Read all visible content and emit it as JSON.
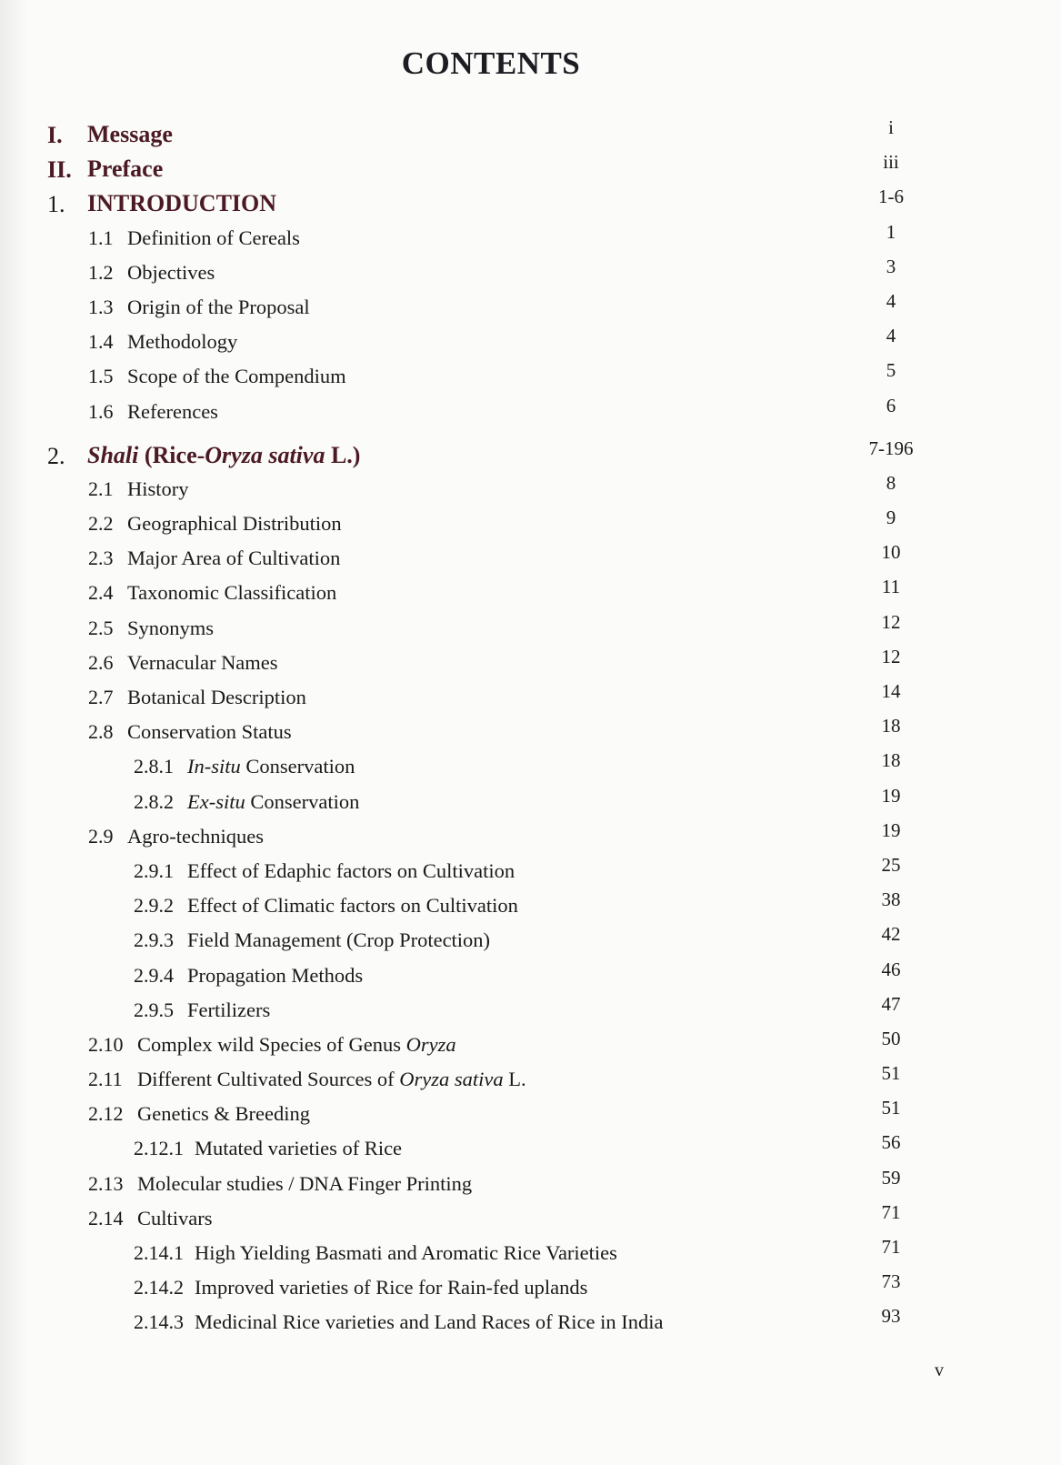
{
  "title": "CONTENTS",
  "entries": [
    {
      "level": 0,
      "bold_num": true,
      "num": "I.",
      "parts": [
        {
          "t": "Message"
        }
      ],
      "page": "i"
    },
    {
      "level": 0,
      "bold_num": true,
      "num": "II.",
      "parts": [
        {
          "t": "Preface"
        }
      ],
      "page": "iii"
    },
    {
      "level": 0,
      "num": "1.",
      "parts": [
        {
          "t": "INTRODUCTION"
        }
      ],
      "page": "1-6"
    },
    {
      "level": 1,
      "num": "1.1",
      "parts": [
        {
          "t": "Definition of Cereals"
        }
      ],
      "page": "1"
    },
    {
      "level": 1,
      "num": "1.2",
      "parts": [
        {
          "t": "Objectives"
        }
      ],
      "page": "3"
    },
    {
      "level": 1,
      "num": "1.3",
      "parts": [
        {
          "t": "Origin of the Proposal"
        }
      ],
      "page": "4"
    },
    {
      "level": 1,
      "num": "1.4",
      "parts": [
        {
          "t": "Methodology"
        }
      ],
      "page": "4"
    },
    {
      "level": 1,
      "num": "1.5",
      "parts": [
        {
          "t": "Scope of the Compendium"
        }
      ],
      "page": "5"
    },
    {
      "level": 1,
      "num": "1.6",
      "parts": [
        {
          "t": "References"
        }
      ],
      "page": "6"
    },
    {
      "level": 0,
      "num": "2.",
      "parts": [
        {
          "t": "Shali",
          "i": true
        },
        {
          "t": " (Rice-"
        },
        {
          "t": "Oryza sativa",
          "i": true
        },
        {
          "t": " L.)"
        }
      ],
      "page": "7-196"
    },
    {
      "level": 1,
      "num": "2.1",
      "parts": [
        {
          "t": "History"
        }
      ],
      "page": "8"
    },
    {
      "level": 1,
      "num": "2.2",
      "parts": [
        {
          "t": "Geographical Distribution"
        }
      ],
      "page": "9"
    },
    {
      "level": 1,
      "num": "2.3",
      "parts": [
        {
          "t": "Major Area of Cultivation"
        }
      ],
      "page": "10"
    },
    {
      "level": 1,
      "num": "2.4",
      "parts": [
        {
          "t": "Taxonomic Classification"
        }
      ],
      "page": "11"
    },
    {
      "level": 1,
      "num": "2.5",
      "parts": [
        {
          "t": "Synonyms"
        }
      ],
      "page": "12"
    },
    {
      "level": 1,
      "num": "2.6",
      "parts": [
        {
          "t": "Vernacular Names"
        }
      ],
      "page": "12"
    },
    {
      "level": 1,
      "num": "2.7",
      "parts": [
        {
          "t": "Botanical Description"
        }
      ],
      "page": "14"
    },
    {
      "level": 1,
      "num": "2.8",
      "parts": [
        {
          "t": "Conservation Status"
        }
      ],
      "page": "18"
    },
    {
      "level": 2,
      "num": "2.8.1",
      "parts": [
        {
          "t": "In-situ",
          "i": true
        },
        {
          "t": " Conservation"
        }
      ],
      "page": "18"
    },
    {
      "level": 2,
      "num": "2.8.2",
      "parts": [
        {
          "t": "Ex-situ",
          "i": true
        },
        {
          "t": " Conservation"
        }
      ],
      "page": "19"
    },
    {
      "level": 1,
      "num": "2.9",
      "parts": [
        {
          "t": "Agro-techniques"
        }
      ],
      "page": "19"
    },
    {
      "level": 2,
      "num": "2.9.1",
      "parts": [
        {
          "t": "Effect of Edaphic factors on Cultivation"
        }
      ],
      "page": "25"
    },
    {
      "level": 2,
      "num": "2.9.2",
      "parts": [
        {
          "t": "Effect of Climatic factors on Cultivation"
        }
      ],
      "page": "38"
    },
    {
      "level": 2,
      "num": "2.9.3",
      "parts": [
        {
          "t": "Field Management (Crop Protection)"
        }
      ],
      "page": "42"
    },
    {
      "level": 2,
      "num": "2.9.4",
      "parts": [
        {
          "t": "Propagation Methods"
        }
      ],
      "page": "46"
    },
    {
      "level": 2,
      "num": "2.9.5",
      "parts": [
        {
          "t": "Fertilizers"
        }
      ],
      "page": "47"
    },
    {
      "level": 1,
      "wide": true,
      "num": "2.10",
      "parts": [
        {
          "t": "Complex wild Species of Genus "
        },
        {
          "t": "Oryza",
          "i": true
        }
      ],
      "page": "50"
    },
    {
      "level": 1,
      "wide": true,
      "num": "2.11",
      "parts": [
        {
          "t": "Different Cultivated Sources of "
        },
        {
          "t": "Oryza sativa",
          "i": true
        },
        {
          "t": " L."
        }
      ],
      "page": "51"
    },
    {
      "level": 1,
      "wide": true,
      "num": "2.12",
      "parts": [
        {
          "t": "Genetics & Breeding"
        }
      ],
      "page": "51"
    },
    {
      "level": 2,
      "wide": true,
      "num": "2.12.1",
      "parts": [
        {
          "t": "Mutated varieties of Rice"
        }
      ],
      "page": "56"
    },
    {
      "level": 1,
      "wide": true,
      "num": "2.13",
      "parts": [
        {
          "t": "Molecular studies / DNA Finger Printing"
        }
      ],
      "page": "59"
    },
    {
      "level": 1,
      "wide": true,
      "num": "2.14",
      "parts": [
        {
          "t": "Cultivars"
        }
      ],
      "page": "71"
    },
    {
      "level": 2,
      "wide": true,
      "num": "2.14.1",
      "parts": [
        {
          "t": "High Yielding Basmati and Aromatic Rice Varieties"
        }
      ],
      "page": "71"
    },
    {
      "level": 2,
      "wide": true,
      "num": "2.14.2",
      "parts": [
        {
          "t": "Improved varieties of Rice for Rain-fed uplands"
        }
      ],
      "page": "73"
    },
    {
      "level": 2,
      "wide": true,
      "num": "2.14.3",
      "parts": [
        {
          "t": "Medicinal Rice varieties and Land Races of Rice in India"
        }
      ],
      "page": "93"
    }
  ],
  "folio": "v"
}
